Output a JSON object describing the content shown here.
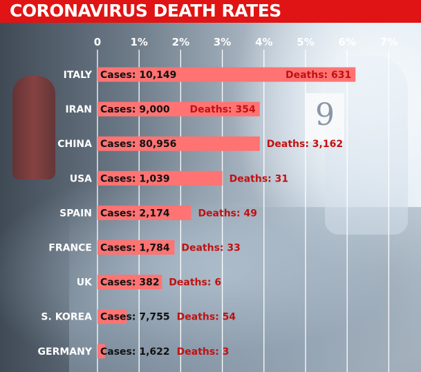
{
  "header": {
    "title": "CORONAVIRUS DEATH RATES",
    "background": "#e01414"
  },
  "colors": {
    "bar": "#ff7373",
    "cases_label": "#111111",
    "deaths_label": "#c21010",
    "gridline": "#ffffff"
  },
  "chart_data": {
    "type": "bar",
    "orientation": "horizontal",
    "title": "CORONAVIRUS DEATH RATES",
    "xlabel": "",
    "ylabel": "",
    "xlim": [
      0,
      7
    ],
    "x_ticks": [
      0,
      1,
      2,
      3,
      4,
      5,
      6,
      7
    ],
    "x_tick_labels": [
      "0",
      "1%",
      "2%",
      "3%",
      "4%",
      "5%",
      "6%",
      "7%"
    ],
    "grid": true,
    "categories": [
      "ITALY",
      "IRAN",
      "CHINA",
      "USA",
      "SPAIN",
      "FRANCE",
      "UK",
      "S. KOREA",
      "GERMANY"
    ],
    "values": [
      6.2,
      3.9,
      3.9,
      3.0,
      2.25,
      1.85,
      1.55,
      0.7,
      0.18
    ],
    "cases_labels": [
      "Cases: 10,149",
      "Cases: 9,000",
      "Cases: 80,956",
      "Cases: 1,039",
      "Cases: 2,174",
      "Cases: 1,784",
      "Cases: 382",
      "Cases: 7,755",
      "Cases: 1,622"
    ],
    "deaths_labels": [
      "Deaths: 631",
      "Deaths: 354",
      "Deaths: 3,162",
      "Deaths: 31",
      "Deaths: 49",
      "Deaths: 33",
      "Deaths: 6",
      "Deaths: 54",
      "Deaths: 3"
    ]
  }
}
